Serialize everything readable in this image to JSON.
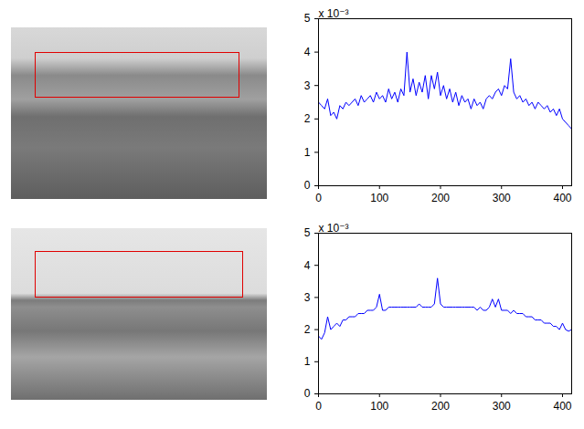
{
  "chart_data": [
    {
      "type": "line",
      "color": "#0000ff",
      "annotation": "x 10⁻³",
      "x": [
        0,
        5,
        10,
        15,
        20,
        25,
        30,
        35,
        40,
        45,
        50,
        55,
        60,
        65,
        70,
        75,
        80,
        85,
        90,
        95,
        100,
        105,
        110,
        115,
        120,
        125,
        130,
        135,
        140,
        145,
        150,
        155,
        160,
        165,
        170,
        175,
        180,
        185,
        190,
        195,
        200,
        205,
        210,
        215,
        220,
        225,
        230,
        235,
        240,
        245,
        250,
        255,
        260,
        265,
        270,
        275,
        280,
        285,
        290,
        295,
        300,
        305,
        310,
        315,
        320,
        325,
        330,
        335,
        340,
        345,
        350,
        355,
        360,
        365,
        370,
        375,
        380,
        385,
        390,
        395,
        400,
        405,
        410,
        415
      ],
      "values": [
        2.5,
        2.4,
        2.3,
        2.6,
        2.1,
        2.2,
        2.0,
        2.4,
        2.3,
        2.5,
        2.4,
        2.5,
        2.6,
        2.4,
        2.7,
        2.5,
        2.6,
        2.7,
        2.5,
        2.8,
        2.6,
        2.7,
        2.5,
        2.9,
        2.6,
        2.8,
        2.5,
        2.9,
        2.7,
        4.0,
        2.8,
        3.2,
        2.7,
        3.1,
        2.8,
        3.3,
        2.6,
        3.3,
        2.9,
        3.4,
        2.7,
        3.0,
        2.6,
        2.9,
        2.5,
        2.8,
        2.4,
        2.7,
        2.5,
        2.6,
        2.3,
        2.6,
        2.4,
        2.5,
        2.3,
        2.6,
        2.7,
        2.6,
        2.8,
        2.9,
        2.7,
        3.0,
        2.9,
        3.8,
        2.8,
        2.6,
        2.7,
        2.5,
        2.6,
        2.4,
        2.5,
        2.3,
        2.5,
        2.4,
        2.3,
        2.4,
        2.2,
        2.3,
        2.1,
        2.3,
        2.0,
        1.9,
        1.8,
        1.7
      ],
      "xlim": [
        0,
        415
      ],
      "ylim": [
        0,
        5
      ],
      "xticks": [
        0,
        100,
        200,
        300,
        400
      ],
      "yticks": [
        0,
        1,
        2,
        3,
        4,
        5
      ],
      "grid": false
    },
    {
      "type": "line",
      "color": "#0000ff",
      "annotation": "x 10⁻³",
      "x": [
        0,
        5,
        10,
        15,
        20,
        25,
        30,
        35,
        40,
        45,
        50,
        55,
        60,
        65,
        70,
        75,
        80,
        85,
        90,
        95,
        100,
        105,
        110,
        115,
        120,
        125,
        130,
        135,
        140,
        145,
        150,
        155,
        160,
        165,
        170,
        175,
        180,
        185,
        190,
        195,
        200,
        205,
        210,
        215,
        220,
        225,
        230,
        235,
        240,
        245,
        250,
        255,
        260,
        265,
        270,
        275,
        280,
        285,
        290,
        295,
        300,
        305,
        310,
        315,
        320,
        325,
        330,
        335,
        340,
        345,
        350,
        355,
        360,
        365,
        370,
        375,
        380,
        385,
        390,
        395,
        400,
        405,
        410,
        415
      ],
      "values": [
        1.8,
        1.7,
        1.9,
        2.4,
        2.0,
        2.1,
        2.2,
        2.1,
        2.3,
        2.3,
        2.4,
        2.4,
        2.4,
        2.5,
        2.5,
        2.5,
        2.6,
        2.6,
        2.6,
        2.7,
        3.1,
        2.6,
        2.6,
        2.7,
        2.7,
        2.7,
        2.7,
        2.7,
        2.7,
        2.7,
        2.7,
        2.7,
        2.7,
        2.8,
        2.7,
        2.7,
        2.7,
        2.7,
        2.8,
        3.6,
        2.8,
        2.7,
        2.7,
        2.7,
        2.7,
        2.7,
        2.7,
        2.7,
        2.7,
        2.7,
        2.7,
        2.7,
        2.6,
        2.7,
        2.6,
        2.6,
        2.7,
        2.95,
        2.7,
        2.95,
        2.6,
        2.6,
        2.6,
        2.5,
        2.6,
        2.5,
        2.5,
        2.5,
        2.4,
        2.4,
        2.4,
        2.3,
        2.3,
        2.3,
        2.2,
        2.2,
        2.2,
        2.1,
        2.1,
        2.0,
        2.2,
        2.0,
        1.95,
        2.0
      ],
      "xlim": [
        0,
        415
      ],
      "ylim": [
        0,
        5
      ],
      "xticks": [
        0,
        100,
        200,
        300,
        400
      ],
      "yticks": [
        0,
        1,
        2,
        3,
        4,
        5
      ],
      "grid": false
    }
  ]
}
